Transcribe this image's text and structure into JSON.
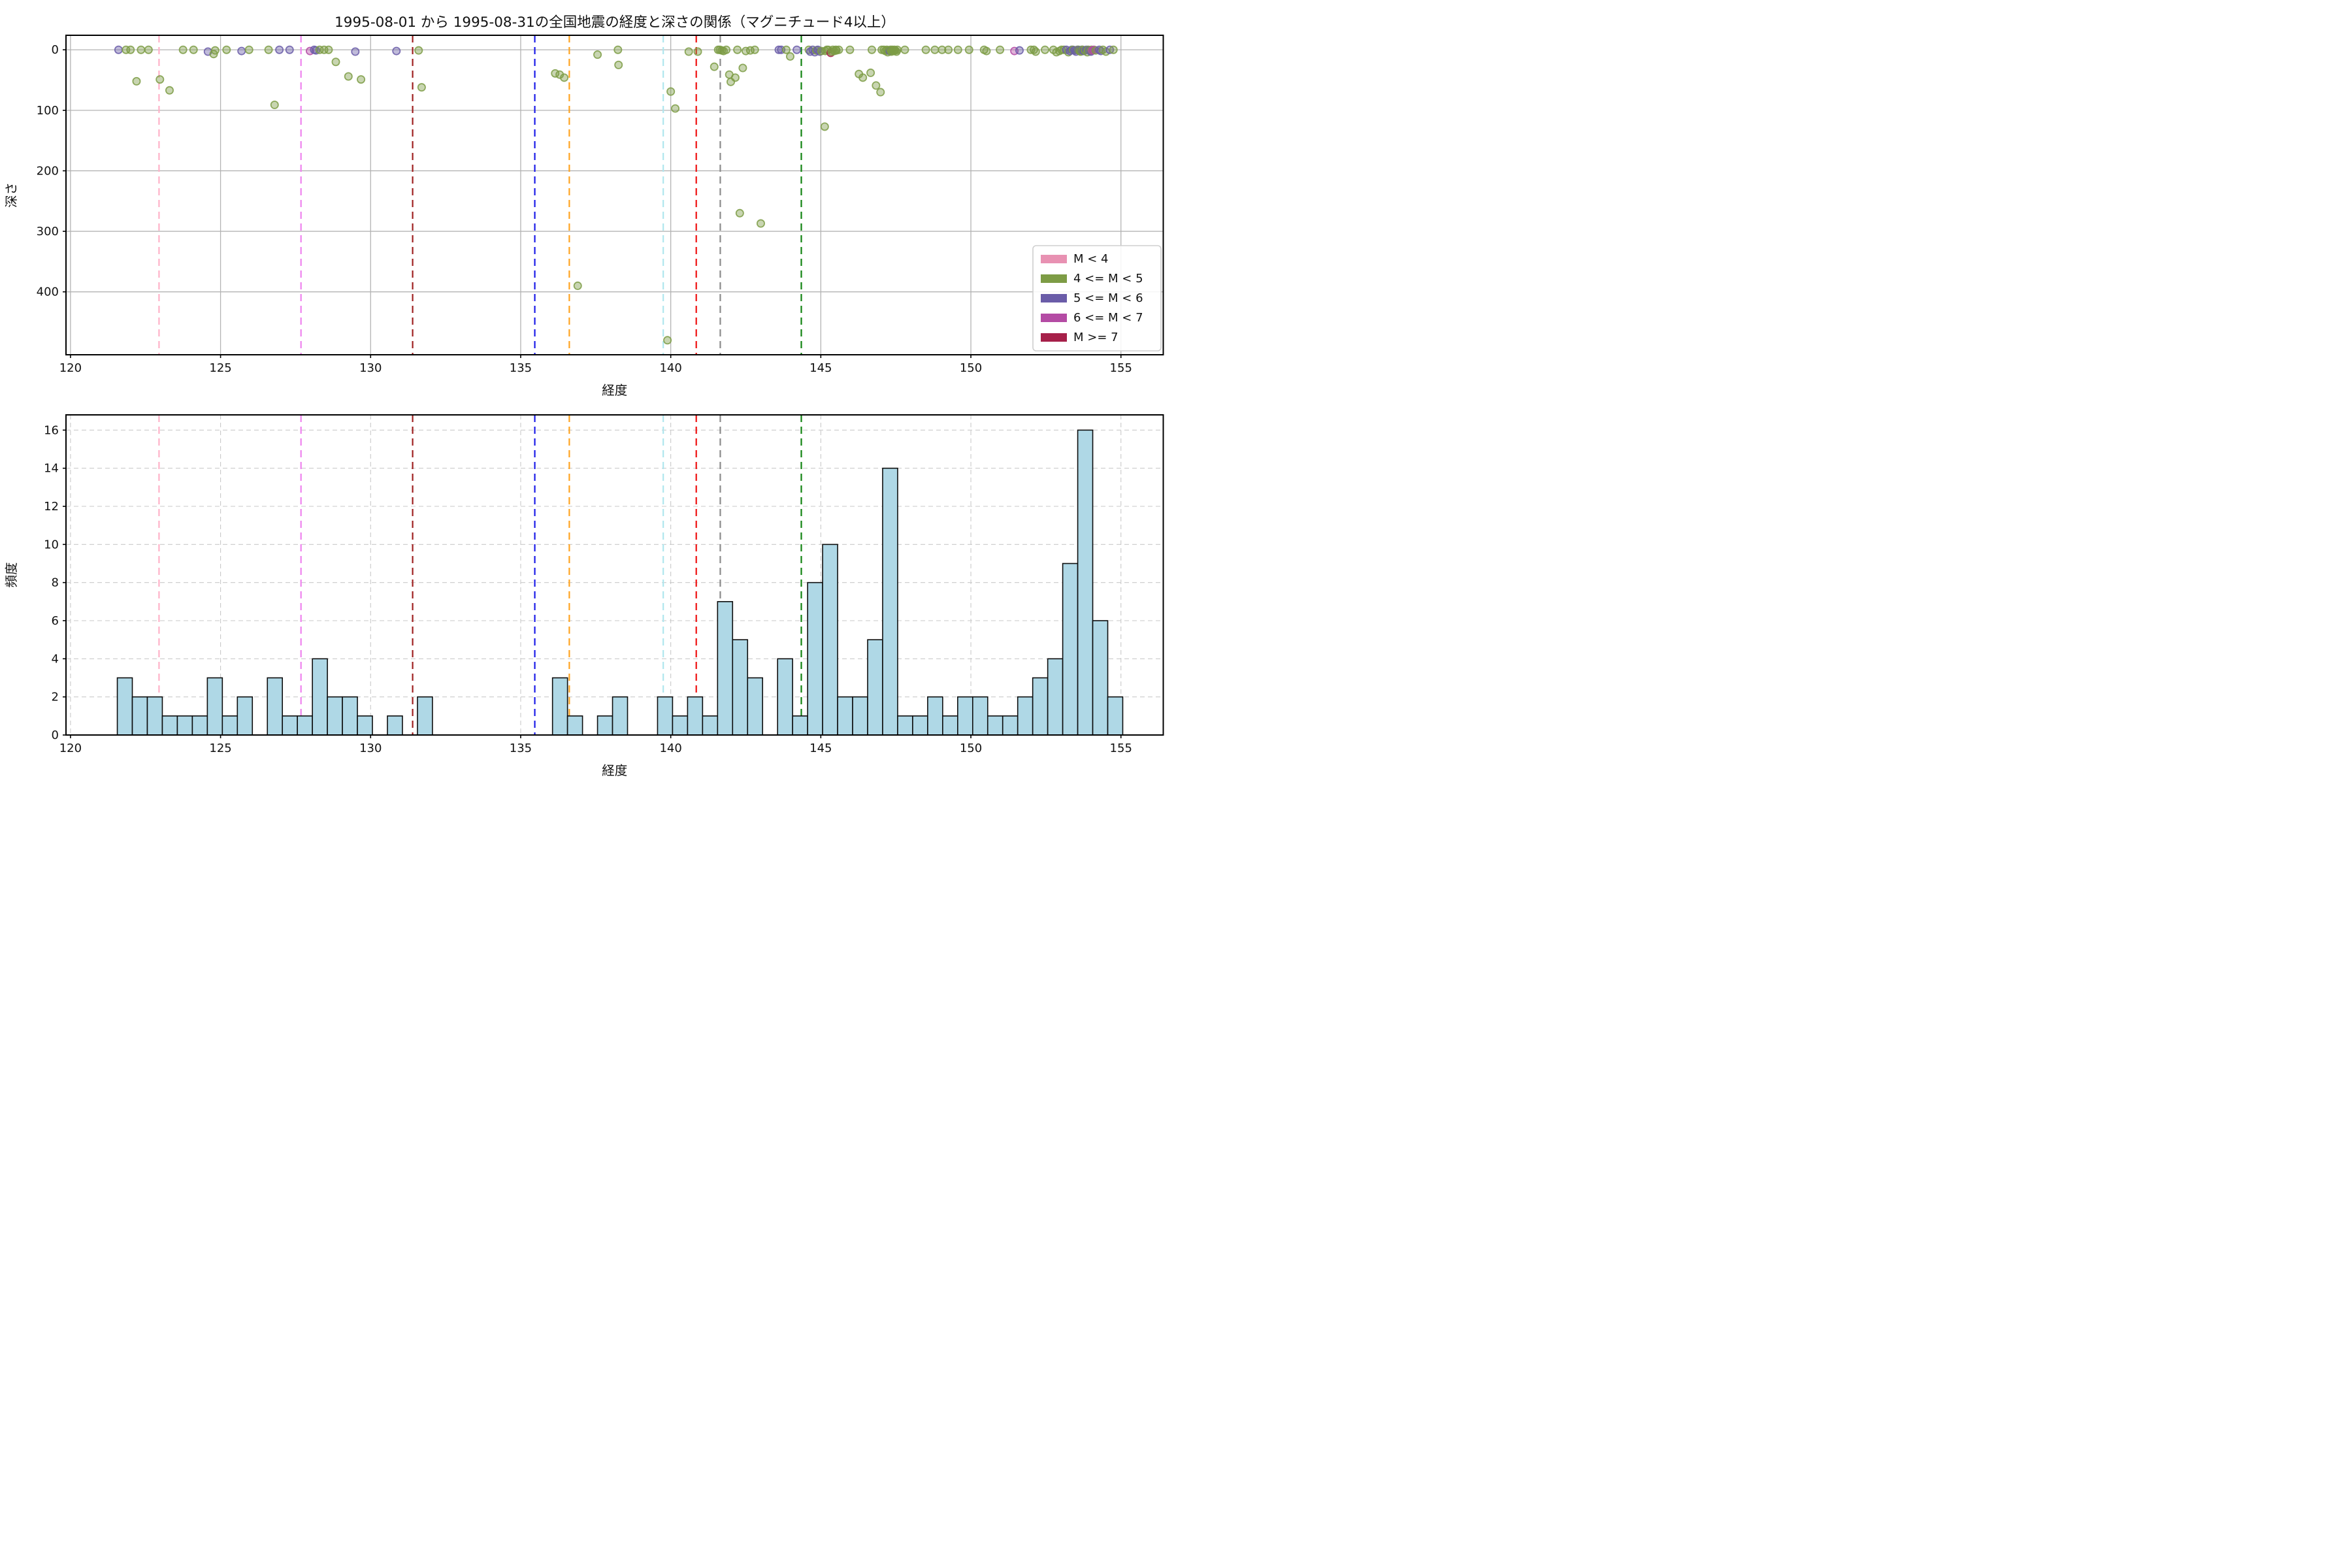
{
  "figure": {
    "title": "1995-08-01 から 1995-08-31の全国地震の経度と深さの関係（マグニチュード4以上）",
    "background": "#ffffff"
  },
  "legend": {
    "entries": [
      {
        "label": "M < 4",
        "color": "#E891B2"
      },
      {
        "label": "4 <= M < 5",
        "color": "#7D9C45"
      },
      {
        "label": "5 <= M < 6",
        "color": "#6A5CA8"
      },
      {
        "label": "6 <= M < 7",
        "color": "#B44BA4"
      },
      {
        "label": "M >= 7",
        "color": "#A62049"
      }
    ]
  },
  "vlines": [
    {
      "x": 122.95,
      "color": "#FFB1C8"
    },
    {
      "x": 127.68,
      "color": "#EE82EE"
    },
    {
      "x": 131.4,
      "color": "#9E1F1F"
    },
    {
      "x": 135.47,
      "color": "#1C1CE8"
    },
    {
      "x": 136.62,
      "color": "#FFA320"
    },
    {
      "x": 139.75,
      "color": "#AFE6EE"
    },
    {
      "x": 140.85,
      "color": "#EE1111"
    },
    {
      "x": 141.65,
      "color": "#8A8A8A"
    },
    {
      "x": 144.35,
      "color": "#108310"
    }
  ],
  "chart_data": [
    {
      "type": "scatter",
      "xlabel": "経度",
      "ylabel": "深さ",
      "xlim": [
        119.85,
        156.41
      ],
      "ylim": [
        504,
        -24
      ],
      "xticks": [
        120,
        125,
        130,
        135,
        140,
        145,
        150,
        155
      ],
      "yticks": [
        0,
        100,
        200,
        300,
        400
      ],
      "grid": "solid",
      "legend_position": "lower right",
      "classes": {
        "g": "4 <= M < 5",
        "p": "5 <= M < 6",
        "m": "6 <= M < 7",
        "r": "M >= 7"
      },
      "class_colors": {
        "g": "#7D9C45",
        "p": "#6A5CA8",
        "m": "#B44BA4",
        "r": "#A62049"
      },
      "points": [
        [
          121.6,
          0,
          "p"
        ],
        [
          121.85,
          0,
          "g"
        ],
        [
          122.0,
          0,
          "g"
        ],
        [
          122.2,
          52,
          "g"
        ],
        [
          122.35,
          0,
          "g"
        ],
        [
          122.6,
          0,
          "g"
        ],
        [
          122.98,
          49,
          "g"
        ],
        [
          123.3,
          67,
          "g"
        ],
        [
          123.75,
          0,
          "g"
        ],
        [
          124.1,
          0,
          "g"
        ],
        [
          124.58,
          3,
          "p"
        ],
        [
          124.77,
          7,
          "g"
        ],
        [
          124.82,
          1,
          "g"
        ],
        [
          125.2,
          0,
          "g"
        ],
        [
          125.7,
          2,
          "p"
        ],
        [
          125.95,
          0,
          "g"
        ],
        [
          126.6,
          0,
          "g"
        ],
        [
          126.8,
          91,
          "g"
        ],
        [
          126.96,
          0,
          "p"
        ],
        [
          127.3,
          0,
          "p"
        ],
        [
          127.98,
          2,
          "m"
        ],
        [
          128.12,
          0,
          "p"
        ],
        [
          128.18,
          1,
          "p"
        ],
        [
          128.3,
          0,
          "g"
        ],
        [
          128.45,
          0,
          "g"
        ],
        [
          128.6,
          0,
          "g"
        ],
        [
          128.84,
          20,
          "g"
        ],
        [
          129.26,
          44,
          "g"
        ],
        [
          129.49,
          3,
          "p"
        ],
        [
          129.68,
          49,
          "g"
        ],
        [
          130.86,
          2,
          "p"
        ],
        [
          131.6,
          1,
          "g"
        ],
        [
          131.7,
          62,
          "g"
        ],
        [
          136.15,
          39,
          "g"
        ],
        [
          136.3,
          41,
          "g"
        ],
        [
          136.45,
          46,
          "g"
        ],
        [
          136.9,
          390,
          "g"
        ],
        [
          137.56,
          8,
          "g"
        ],
        [
          138.24,
          0,
          "g"
        ],
        [
          138.26,
          25,
          "g"
        ],
        [
          139.89,
          480,
          "g"
        ],
        [
          140.0,
          69,
          "g"
        ],
        [
          140.15,
          97,
          "g"
        ],
        [
          140.6,
          3,
          "g"
        ],
        [
          140.9,
          3,
          "g"
        ],
        [
          141.45,
          28,
          "g"
        ],
        [
          141.58,
          0,
          "g"
        ],
        [
          141.64,
          0,
          "g"
        ],
        [
          141.7,
          1,
          "g"
        ],
        [
          141.76,
          2,
          "g"
        ],
        [
          141.85,
          0,
          "g"
        ],
        [
          141.95,
          41,
          "g"
        ],
        [
          142.0,
          53,
          "g"
        ],
        [
          142.15,
          46,
          "g"
        ],
        [
          142.22,
          0,
          "g"
        ],
        [
          142.3,
          270,
          "g"
        ],
        [
          142.4,
          30,
          "g"
        ],
        [
          142.5,
          2,
          "g"
        ],
        [
          142.65,
          1,
          "g"
        ],
        [
          142.8,
          0,
          "g"
        ],
        [
          143.0,
          287,
          "g"
        ],
        [
          143.6,
          0,
          "p"
        ],
        [
          143.68,
          0,
          "p"
        ],
        [
          143.85,
          0,
          "g"
        ],
        [
          143.98,
          11,
          "g"
        ],
        [
          144.2,
          0,
          "p"
        ],
        [
          144.6,
          0,
          "g"
        ],
        [
          144.65,
          3,
          "p"
        ],
        [
          144.73,
          0,
          "p"
        ],
        [
          144.8,
          4,
          "p"
        ],
        [
          144.85,
          1,
          "g"
        ],
        [
          144.9,
          0,
          "p"
        ],
        [
          144.97,
          3,
          "p"
        ],
        [
          145.02,
          2,
          "g"
        ],
        [
          145.13,
          127,
          "g"
        ],
        [
          145.15,
          2,
          "g"
        ],
        [
          145.2,
          0,
          "g"
        ],
        [
          145.25,
          0,
          "g"
        ],
        [
          145.33,
          5,
          "r"
        ],
        [
          145.36,
          3,
          "g"
        ],
        [
          145.4,
          0,
          "g"
        ],
        [
          145.45,
          2,
          "g"
        ],
        [
          145.5,
          0,
          "g"
        ],
        [
          145.52,
          1,
          "g"
        ],
        [
          145.6,
          0,
          "g"
        ],
        [
          145.97,
          0,
          "g"
        ],
        [
          146.27,
          40,
          "g"
        ],
        [
          146.4,
          46,
          "g"
        ],
        [
          146.66,
          38,
          "g"
        ],
        [
          146.7,
          0,
          "g"
        ],
        [
          146.84,
          59,
          "g"
        ],
        [
          146.99,
          70,
          "g"
        ],
        [
          147.03,
          0,
          "g"
        ],
        [
          147.1,
          0,
          "g"
        ],
        [
          147.15,
          2,
          "g"
        ],
        [
          147.2,
          0,
          "g"
        ],
        [
          147.23,
          4,
          "g"
        ],
        [
          147.26,
          1,
          "g"
        ],
        [
          147.3,
          2,
          "p"
        ],
        [
          147.32,
          0,
          "g"
        ],
        [
          147.35,
          3,
          "g"
        ],
        [
          147.38,
          0,
          "g"
        ],
        [
          147.42,
          2,
          "g"
        ],
        [
          147.45,
          0,
          "g"
        ],
        [
          147.48,
          1,
          "g"
        ],
        [
          147.52,
          3,
          "g"
        ],
        [
          147.55,
          0,
          "g"
        ],
        [
          147.8,
          0,
          "g"
        ],
        [
          148.5,
          0,
          "g"
        ],
        [
          148.8,
          0,
          "g"
        ],
        [
          149.04,
          0,
          "g"
        ],
        [
          149.25,
          0,
          "g"
        ],
        [
          149.57,
          0,
          "g"
        ],
        [
          149.94,
          0,
          "g"
        ],
        [
          150.44,
          0,
          "g"
        ],
        [
          150.52,
          2,
          "g"
        ],
        [
          150.97,
          0,
          "g"
        ],
        [
          151.45,
          2,
          "m"
        ],
        [
          151.62,
          1,
          "p"
        ],
        [
          152.0,
          0,
          "g"
        ],
        [
          152.1,
          0,
          "g"
        ],
        [
          152.16,
          3,
          "g"
        ],
        [
          152.47,
          0,
          "g"
        ],
        [
          152.75,
          0,
          "g"
        ],
        [
          152.85,
          4,
          "g"
        ],
        [
          152.95,
          2,
          "g"
        ],
        [
          153.02,
          0,
          "g"
        ],
        [
          153.1,
          0,
          "g"
        ],
        [
          153.18,
          0,
          "p"
        ],
        [
          153.25,
          4,
          "g"
        ],
        [
          153.3,
          2,
          "p"
        ],
        [
          153.36,
          0,
          "p"
        ],
        [
          153.4,
          0,
          "g"
        ],
        [
          153.45,
          1,
          "p"
        ],
        [
          153.5,
          3,
          "p"
        ],
        [
          153.55,
          0,
          "p"
        ],
        [
          153.58,
          0,
          "g"
        ],
        [
          153.6,
          1,
          "p"
        ],
        [
          153.62,
          2,
          "g"
        ],
        [
          153.66,
          3,
          "g"
        ],
        [
          153.7,
          0,
          "p"
        ],
        [
          153.72,
          0,
          "g"
        ],
        [
          153.76,
          2,
          "p"
        ],
        [
          153.8,
          1,
          "g"
        ],
        [
          153.85,
          0,
          "p"
        ],
        [
          153.88,
          4,
          "g"
        ],
        [
          153.91,
          0,
          "g"
        ],
        [
          153.95,
          1,
          "p"
        ],
        [
          153.98,
          2,
          "g"
        ],
        [
          154.0,
          3,
          "p"
        ],
        [
          154.02,
          0,
          "g"
        ],
        [
          154.04,
          1,
          "m"
        ],
        [
          154.1,
          0,
          "m"
        ],
        [
          154.16,
          1,
          "g"
        ],
        [
          154.28,
          0,
          "p"
        ],
        [
          154.33,
          2,
          "p"
        ],
        [
          154.4,
          0,
          "g"
        ],
        [
          154.5,
          3,
          "g"
        ],
        [
          154.63,
          0,
          "p"
        ],
        [
          154.75,
          0,
          "g"
        ]
      ]
    },
    {
      "type": "bar",
      "xlabel": "経度",
      "ylabel": "頻度",
      "xlim": [
        119.85,
        156.41
      ],
      "ylim": [
        0,
        16.8
      ],
      "xticks": [
        120,
        125,
        130,
        135,
        140,
        145,
        150,
        155
      ],
      "yticks": [
        0,
        2,
        4,
        6,
        8,
        10,
        12,
        14,
        16
      ],
      "grid": "dashed",
      "bar_color": "#AFD8E6",
      "bar_edge": "#0D0D0D",
      "bin_start": 121.56,
      "bin_width": 0.5,
      "values": [
        3,
        2,
        2,
        1,
        1,
        1,
        3,
        1,
        2,
        0,
        3,
        1,
        1,
        4,
        2,
        2,
        1,
        0,
        1,
        0,
        2,
        0,
        0,
        0,
        0,
        0,
        0,
        0,
        0,
        3,
        1,
        0,
        1,
        2,
        0,
        0,
        2,
        1,
        2,
        1,
        7,
        5,
        3,
        0,
        4,
        1,
        8,
        10,
        2,
        2,
        5,
        14,
        1,
        1,
        2,
        1,
        2,
        2,
        1,
        1,
        2,
        3,
        4,
        9,
        16,
        6,
        2
      ]
    }
  ]
}
